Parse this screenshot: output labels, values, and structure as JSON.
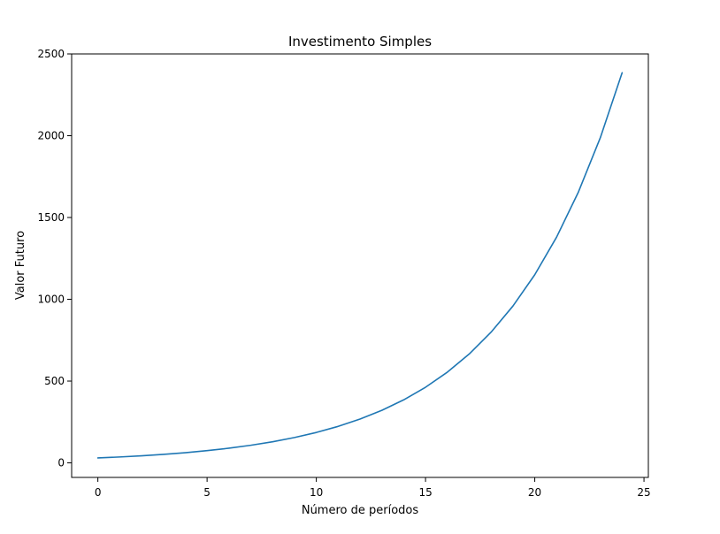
{
  "chart_data": {
    "type": "line",
    "title": "Investimento Simples",
    "xlabel": "Número de períodos",
    "ylabel": "Valor Futuro",
    "xlim": [
      -1.2,
      25.2
    ],
    "ylim": [
      -89,
      2500
    ],
    "xticks": [
      0,
      5,
      10,
      15,
      20,
      25
    ],
    "yticks": [
      0,
      500,
      1000,
      1500,
      2000,
      2500
    ],
    "grid": false,
    "series": [
      {
        "color": "#1f77b4",
        "x": [
          0,
          1,
          2,
          3,
          4,
          5,
          6,
          7,
          8,
          9,
          10,
          11,
          12,
          13,
          14,
          15,
          16,
          17,
          18,
          19,
          20,
          21,
          22,
          23,
          24
        ],
        "y": [
          30.0,
          36.0,
          43.2,
          51.8,
          62.2,
          74.6,
          89.6,
          107.5,
          129.0,
          154.8,
          185.8,
          222.9,
          267.5,
          321.0,
          385.2,
          462.2,
          554.7,
          665.6,
          798.8,
          958.5,
          1150.1,
          1380.2,
          1656.2,
          1987.4,
          2385.0
        ]
      }
    ]
  }
}
